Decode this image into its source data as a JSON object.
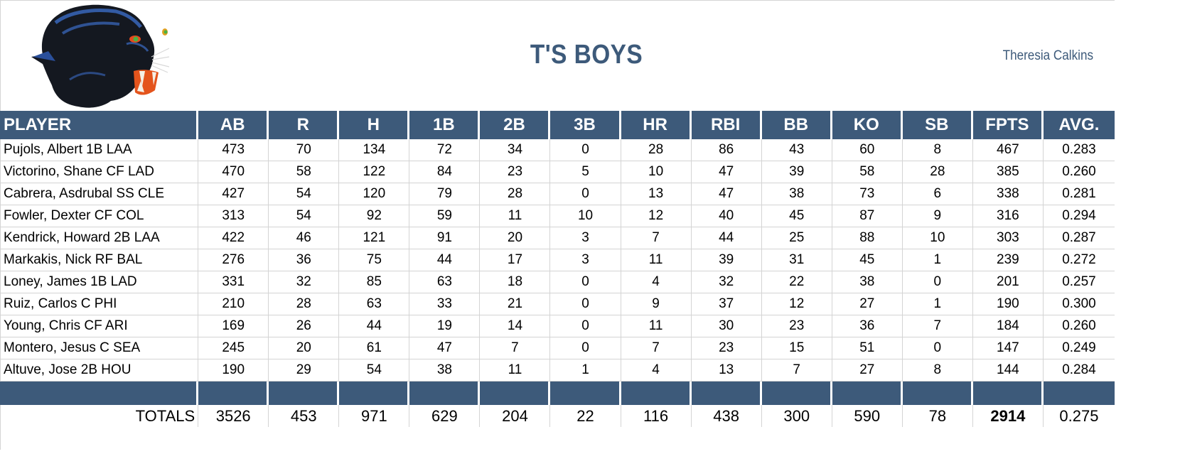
{
  "header": {
    "team_name": "T'S BOYS",
    "owner": "Theresia Calkins",
    "logo": "panther-head-icon"
  },
  "colors": {
    "header_bg": "#3d5a7a",
    "header_text": "#ffffff",
    "title_text": "#3d5a7a",
    "grid_line": "#d4d4d4"
  },
  "table": {
    "columns": [
      "PLAYER",
      "AB",
      "R",
      "H",
      "1B",
      "2B",
      "3B",
      "HR",
      "RBI",
      "BB",
      "KO",
      "SB",
      "FPTS",
      "AVG."
    ],
    "rows": [
      [
        "Pujols, Albert 1B LAA",
        "473",
        "70",
        "134",
        "72",
        "34",
        "0",
        "28",
        "86",
        "43",
        "60",
        "8",
        "467",
        "0.283"
      ],
      [
        "Victorino, Shane CF LAD",
        "470",
        "58",
        "122",
        "84",
        "23",
        "5",
        "10",
        "47",
        "39",
        "58",
        "28",
        "385",
        "0.260"
      ],
      [
        "Cabrera, Asdrubal SS CLE",
        "427",
        "54",
        "120",
        "79",
        "28",
        "0",
        "13",
        "47",
        "38",
        "73",
        "6",
        "338",
        "0.281"
      ],
      [
        "Fowler, Dexter CF COL",
        "313",
        "54",
        "92",
        "59",
        "11",
        "10",
        "12",
        "40",
        "45",
        "87",
        "9",
        "316",
        "0.294"
      ],
      [
        "Kendrick, Howard 2B LAA",
        "422",
        "46",
        "121",
        "91",
        "20",
        "3",
        "7",
        "44",
        "25",
        "88",
        "10",
        "303",
        "0.287"
      ],
      [
        "Markakis, Nick RF BAL",
        "276",
        "36",
        "75",
        "44",
        "17",
        "3",
        "11",
        "39",
        "31",
        "45",
        "1",
        "239",
        "0.272"
      ],
      [
        "Loney, James 1B LAD",
        "331",
        "32",
        "85",
        "63",
        "18",
        "0",
        "4",
        "32",
        "22",
        "38",
        "0",
        "201",
        "0.257"
      ],
      [
        "Ruiz, Carlos C PHI",
        "210",
        "28",
        "63",
        "33",
        "21",
        "0",
        "9",
        "37",
        "12",
        "27",
        "1",
        "190",
        "0.300"
      ],
      [
        "Young, Chris CF ARI",
        "169",
        "26",
        "44",
        "19",
        "14",
        "0",
        "11",
        "30",
        "23",
        "36",
        "7",
        "184",
        "0.260"
      ],
      [
        "Montero, Jesus C SEA",
        "245",
        "20",
        "61",
        "47",
        "7",
        "0",
        "7",
        "23",
        "15",
        "51",
        "0",
        "147",
        "0.249"
      ],
      [
        "Altuve, Jose 2B HOU",
        "190",
        "29",
        "54",
        "38",
        "11",
        "1",
        "4",
        "13",
        "7",
        "27",
        "8",
        "144",
        "0.284"
      ]
    ],
    "totals": [
      "TOTALS",
      "3526",
      "453",
      "971",
      "629",
      "204",
      "22",
      "116",
      "438",
      "300",
      "590",
      "78",
      "2914",
      "0.275"
    ]
  }
}
